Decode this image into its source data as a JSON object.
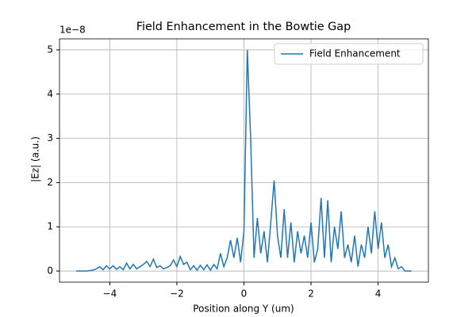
{
  "chart_data": {
    "type": "line",
    "title": "Field Enhancement in the Bowtie Gap",
    "x_label": "Position along Y (um)",
    "y_label": "|Ez| (a.u.)",
    "y_offset_text": "1e−8",
    "x": [
      -5.0,
      -4.9,
      -4.8,
      -4.7,
      -4.6,
      -4.5,
      -4.4,
      -4.3,
      -4.2,
      -4.1,
      -4.0,
      -3.9,
      -3.8,
      -3.7,
      -3.6,
      -3.5,
      -3.4,
      -3.3,
      -3.2,
      -3.1,
      -3.0,
      -2.9,
      -2.8,
      -2.7,
      -2.6,
      -2.5,
      -2.4,
      -2.3,
      -2.2,
      -2.1,
      -2.0,
      -1.9,
      -1.8,
      -1.7,
      -1.6,
      -1.5,
      -1.4,
      -1.3,
      -1.2,
      -1.1,
      -1.0,
      -0.9,
      -0.8,
      -0.7,
      -0.6,
      -0.5,
      -0.4,
      -0.3,
      -0.2,
      -0.1,
      0.0,
      0.1,
      0.2,
      0.3,
      0.4,
      0.5,
      0.6,
      0.7,
      0.8,
      0.9,
      1.0,
      1.1,
      1.2,
      1.3,
      1.4,
      1.5,
      1.6,
      1.7,
      1.8,
      1.9,
      2.0,
      2.1,
      2.2,
      2.3,
      2.4,
      2.5,
      2.6,
      2.7,
      2.8,
      2.9,
      3.0,
      3.1,
      3.2,
      3.3,
      3.4,
      3.5,
      3.6,
      3.7,
      3.8,
      3.9,
      4.0,
      4.1,
      4.2,
      4.3,
      4.4,
      4.5,
      4.6,
      4.7,
      4.8,
      4.9,
      5.0
    ],
    "series": [
      {
        "name": "Field Enhancement",
        "color": "#1f77b4",
        "values": [
          0,
          0,
          0,
          0,
          0.01,
          0.02,
          0.05,
          0.1,
          0.03,
          0.12,
          0.05,
          0.12,
          0.04,
          0.1,
          0.03,
          0.18,
          0.05,
          0.15,
          0.05,
          0.1,
          0.15,
          0.22,
          0.1,
          0.27,
          0.08,
          0.12,
          0.05,
          0.08,
          0.12,
          0.25,
          0.1,
          0.33,
          0.15,
          0.2,
          0.03,
          0.12,
          0.02,
          0.13,
          0.03,
          0.14,
          0.02,
          0.15,
          0.05,
          0.4,
          0.1,
          0.3,
          0.7,
          0.3,
          0.75,
          0.2,
          0.9,
          5.0,
          3.0,
          0.3,
          1.2,
          0.4,
          0.9,
          0.2,
          1.1,
          2.05,
          0.8,
          0.3,
          1.4,
          0.3,
          1.1,
          0.2,
          0.9,
          0.4,
          0.8,
          0.3,
          1.1,
          0.2,
          0.5,
          1.65,
          0.3,
          1.6,
          0.2,
          1.0,
          0.5,
          1.35,
          0.3,
          0.6,
          0.2,
          0.8,
          0.1,
          0.6,
          0.3,
          1.0,
          0.4,
          1.35,
          0.5,
          1.1,
          0.3,
          0.6,
          0.1,
          0.3,
          0.05,
          0.1,
          0,
          0,
          0
        ]
      }
    ],
    "xlim": [
      -5.5,
      5.5
    ],
    "ylim": [
      -0.25,
      5.25
    ],
    "xticks": [
      {
        "value": -4,
        "label": "−4"
      },
      {
        "value": -2,
        "label": "−2"
      },
      0,
      2,
      4
    ],
    "yticks": [
      0,
      1,
      2,
      3,
      4,
      5
    ],
    "grid": true,
    "legend_position": "upper right"
  }
}
